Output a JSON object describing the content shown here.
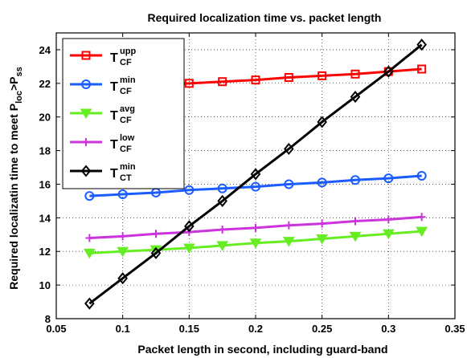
{
  "chart_data": {
    "type": "line",
    "title": "Required localization time vs. packet length",
    "xlabel": "Packet length in second, including guard-band",
    "ylabel": {
      "base": "Required localizatin time to meet P",
      "sub1": "loc",
      "mid": ">P",
      "sub2": "ss"
    },
    "xlim": [
      0.05,
      0.35
    ],
    "ylim": [
      8,
      25
    ],
    "xticks": [
      0.05,
      0.1,
      0.15,
      0.2,
      0.25,
      0.3,
      0.35
    ],
    "xtick_labels": [
      "0.05",
      "0.1",
      "0.15",
      "0.2",
      "0.25",
      "0.3",
      "0.35"
    ],
    "yticks": [
      8,
      10,
      12,
      14,
      16,
      18,
      20,
      22,
      24
    ],
    "ytick_labels": [
      "8",
      "10",
      "12",
      "14",
      "16",
      "18",
      "20",
      "22",
      "24"
    ],
    "grid": true,
    "legend_position": "top-left",
    "x": [
      0.075,
      0.1,
      0.125,
      0.15,
      0.175,
      0.2,
      0.225,
      0.25,
      0.275,
      0.3,
      0.325
    ],
    "series": [
      {
        "legend_base": "T",
        "legend_sup": "upp",
        "legend_sub": "CF",
        "color": "#ff0000",
        "marker": "square",
        "values": [
          21.7,
          21.8,
          21.9,
          22.0,
          22.1,
          22.2,
          22.35,
          22.45,
          22.55,
          22.7,
          22.85
        ]
      },
      {
        "legend_base": "T",
        "legend_sup": "min",
        "legend_sub": "CF",
        "color": "#1a5cff",
        "marker": "circle",
        "values": [
          15.3,
          15.4,
          15.5,
          15.65,
          15.75,
          15.85,
          16.0,
          16.1,
          16.25,
          16.35,
          16.5
        ]
      },
      {
        "legend_base": "T",
        "legend_sup": "avg",
        "legend_sub": "CF",
        "color": "#66ee22",
        "marker": "triangle-down",
        "values": [
          11.9,
          12.0,
          12.1,
          12.2,
          12.35,
          12.5,
          12.6,
          12.75,
          12.9,
          13.05,
          13.2
        ]
      },
      {
        "legend_base": "T",
        "legend_sup": "low",
        "legend_sub": "CF",
        "color": "#cc33dd",
        "marker": "plus",
        "values": [
          12.8,
          12.9,
          13.05,
          13.15,
          13.3,
          13.4,
          13.55,
          13.65,
          13.8,
          13.9,
          14.05
        ]
      },
      {
        "legend_base": "T",
        "legend_sup": "min",
        "legend_sub": "CT",
        "color": "#000000",
        "marker": "diamond",
        "values": [
          8.9,
          10.4,
          11.9,
          13.5,
          15.0,
          16.6,
          18.1,
          19.7,
          21.2,
          22.7,
          24.3
        ]
      }
    ]
  }
}
